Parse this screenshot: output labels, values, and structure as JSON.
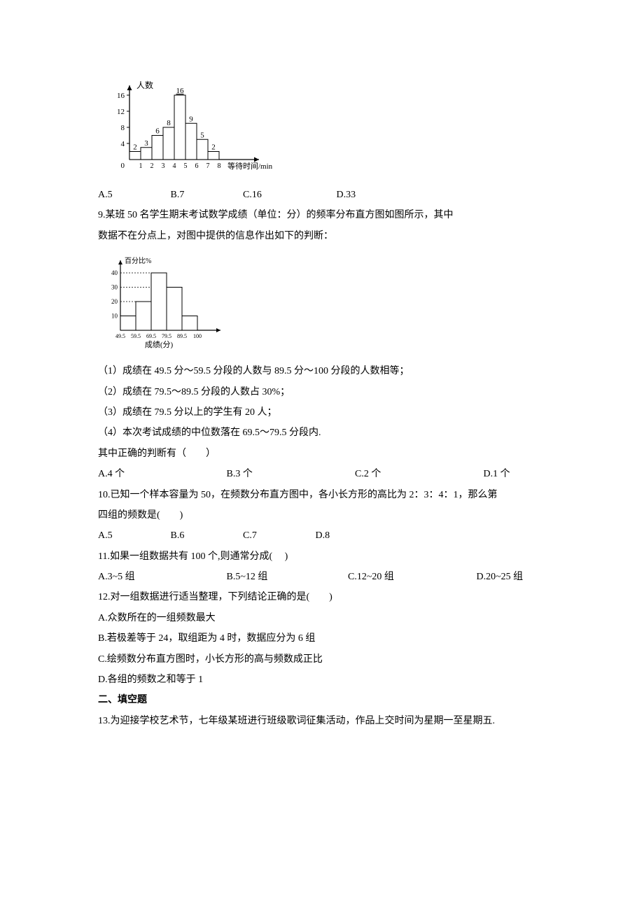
{
  "chart1": {
    "type": "bar",
    "y_label": "人数",
    "x_label": "等待时间/min",
    "categories": [
      "1",
      "2",
      "3",
      "4",
      "5",
      "6",
      "7",
      "8"
    ],
    "values": [
      2,
      3,
      6,
      8,
      16,
      9,
      5,
      2
    ],
    "y_ticks": [
      4,
      8,
      12,
      16
    ],
    "bar_labels": [
      "2",
      "3",
      "6",
      "8",
      "16",
      "9",
      "5",
      "2"
    ],
    "origin_label": "0",
    "bar_fill": "#ffffff",
    "bar_stroke": "#000000",
    "axis_color": "#000000",
    "text_color": "#000000",
    "fontsize": 12
  },
  "q8": {
    "opts": {
      "a": "A.5",
      "b": "B.7",
      "c": "C.16",
      "d": "D.33"
    }
  },
  "q9": {
    "stem1": "9.某班 50 名学生期末考试数学成绩（单位：分）的频率分布直方图如图所示，其中",
    "stem2": "数据不在分点上，对图中提供的信息作出如下的判断：",
    "s1": "（1）成绩在 49.5 分～59.5 分段的人数与 89.5 分～100 分段的人数相等；",
    "s2": "（2）成绩在 79.5～89.5 分段的人数占 30%；",
    "s3": "（3）成绩在 79.5 分以上的学生有 20 人；",
    "s4": "（4）本次考试成绩的中位数落在 69.5～79.5 分段内.",
    "tail": "其中正确的判断有（　　）",
    "opts": {
      "a": "A.4 个",
      "b": "B.3 个",
      "c": "C.2 个",
      "d": "D.1 个"
    }
  },
  "chart2": {
    "type": "bar",
    "y_label": "百分比%",
    "x_edges": [
      "49.5",
      "59.5",
      "69.5",
      "79.5",
      "89.5",
      "100"
    ],
    "x_caption": "成绩(分)",
    "heights": [
      10,
      20,
      40,
      30,
      10
    ],
    "y_ticks": [
      10,
      20,
      30,
      40
    ],
    "bar_fill": "#ffffff",
    "bar_stroke": "#000000",
    "axis_color": "#000000",
    "text_color": "#000000",
    "fontsize": 10
  },
  "q10": {
    "stem1": "10.已知一个样本容量为 50，在频数分布直方图中，各小长方形的高比为 2：3：4：1，那么第",
    "stem2": "四组的频数是(　　)",
    "opts": {
      "a": "A.5",
      "b": "B.6",
      "c": "C.7",
      "d": "D.8"
    }
  },
  "q11": {
    "stem": "11.如果一组数据共有 100 个,则通常分成(　 )",
    "opts": {
      "a": "A.3~5 组",
      "b": "B.5~12 组",
      "c": "C.12~20 组",
      "d": "D.20~25 组"
    }
  },
  "q12": {
    "stem": "12.对一组数据进行适当整理，下列结论正确的是(　　)",
    "a": "A.众数所在的一组频数最大",
    "b": "B.若极差等于 24，取组距为 4 时，数据应分为 6 组",
    "c": "C.绘频数分布直方图时，小长方形的高与频数成正比",
    "d": "D.各组的频数之和等于 1"
  },
  "sec2": {
    "title": "二、填空题"
  },
  "q13": {
    "stem": "13.为迎接学校艺术节，七年级某班进行班级歌词征集活动，作品上交时间为星期一至星期五."
  }
}
